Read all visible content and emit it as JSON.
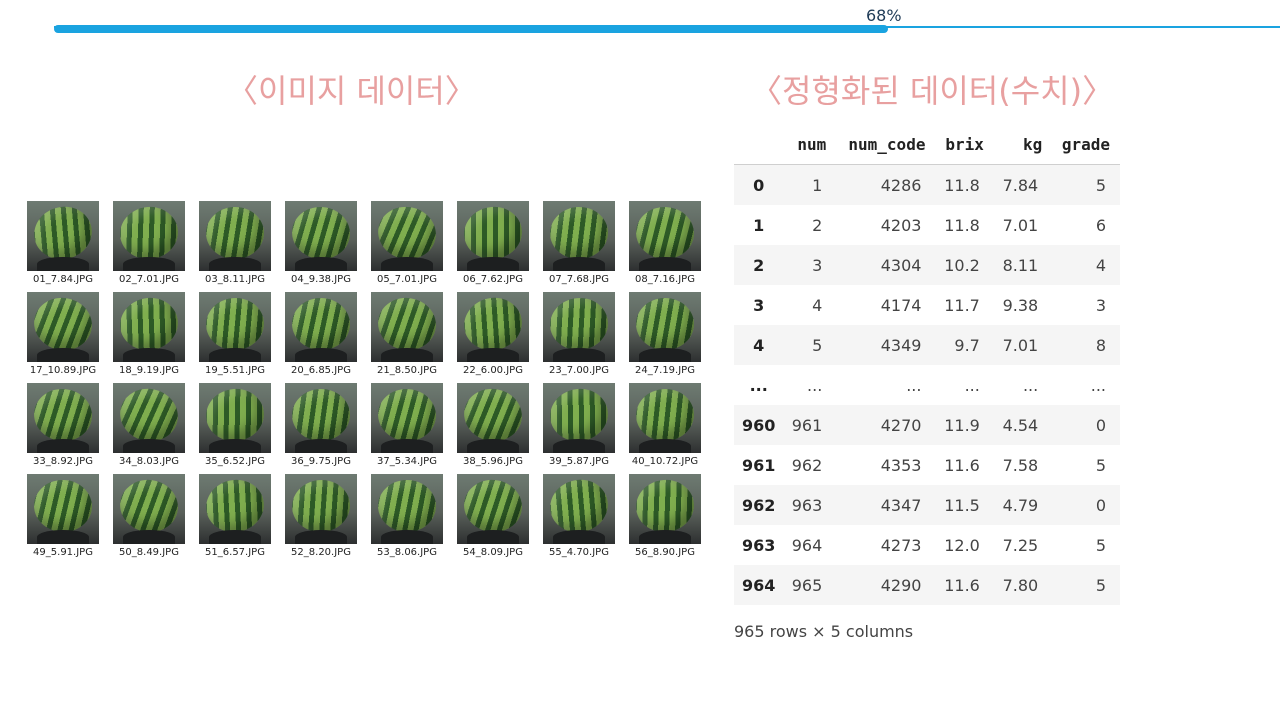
{
  "progress": {
    "percent": 68,
    "label": "68%",
    "color": "#1aa3e0"
  },
  "headings": {
    "image": "〈이미지 데이터〉",
    "table": "〈정형화된 데이터(수치)〉",
    "color": "#e8a0a0"
  },
  "thumbnails": [
    "01_7.84.JPG",
    "02_7.01.JPG",
    "03_8.11.JPG",
    "04_9.38.JPG",
    "05_7.01.JPG",
    "06_7.62.JPG",
    "07_7.68.JPG",
    "08_7.16.JPG",
    "17_10.89.JPG",
    "18_9.19.JPG",
    "19_5.51.JPG",
    "20_6.85.JPG",
    "21_8.50.JPG",
    "22_6.00.JPG",
    "23_7.00.JPG",
    "24_7.19.JPG",
    "33_8.92.JPG",
    "34_8.03.JPG",
    "35_6.52.JPG",
    "36_9.75.JPG",
    "37_5.34.JPG",
    "38_5.96.JPG",
    "39_5.87.JPG",
    "40_10.72.JPG",
    "49_5.91.JPG",
    "50_8.49.JPG",
    "51_6.57.JPG",
    "52_8.20.JPG",
    "53_8.06.JPG",
    "54_8.09.JPG",
    "55_4.70.JPG",
    "56_8.90.JPG"
  ],
  "table": {
    "columns": [
      "",
      "num",
      "num_code",
      "brix",
      "kg",
      "grade"
    ],
    "rows": [
      [
        "0",
        "1",
        "4286",
        "11.8",
        "7.84",
        "5"
      ],
      [
        "1",
        "2",
        "4203",
        "11.8",
        "7.01",
        "6"
      ],
      [
        "2",
        "3",
        "4304",
        "10.2",
        "8.11",
        "4"
      ],
      [
        "3",
        "4",
        "4174",
        "11.7",
        "9.38",
        "3"
      ],
      [
        "4",
        "5",
        "4349",
        "9.7",
        "7.01",
        "8"
      ],
      [
        "...",
        "...",
        "...",
        "...",
        "...",
        "..."
      ],
      [
        "960",
        "961",
        "4270",
        "11.9",
        "4.54",
        "0"
      ],
      [
        "961",
        "962",
        "4353",
        "11.6",
        "7.58",
        "5"
      ],
      [
        "962",
        "963",
        "4347",
        "11.5",
        "4.79",
        "0"
      ],
      [
        "963",
        "964",
        "4273",
        "12.0",
        "7.25",
        "5"
      ],
      [
        "964",
        "965",
        "4290",
        "11.6",
        "7.80",
        "5"
      ]
    ],
    "footer": "965 rows × 5 columns"
  }
}
